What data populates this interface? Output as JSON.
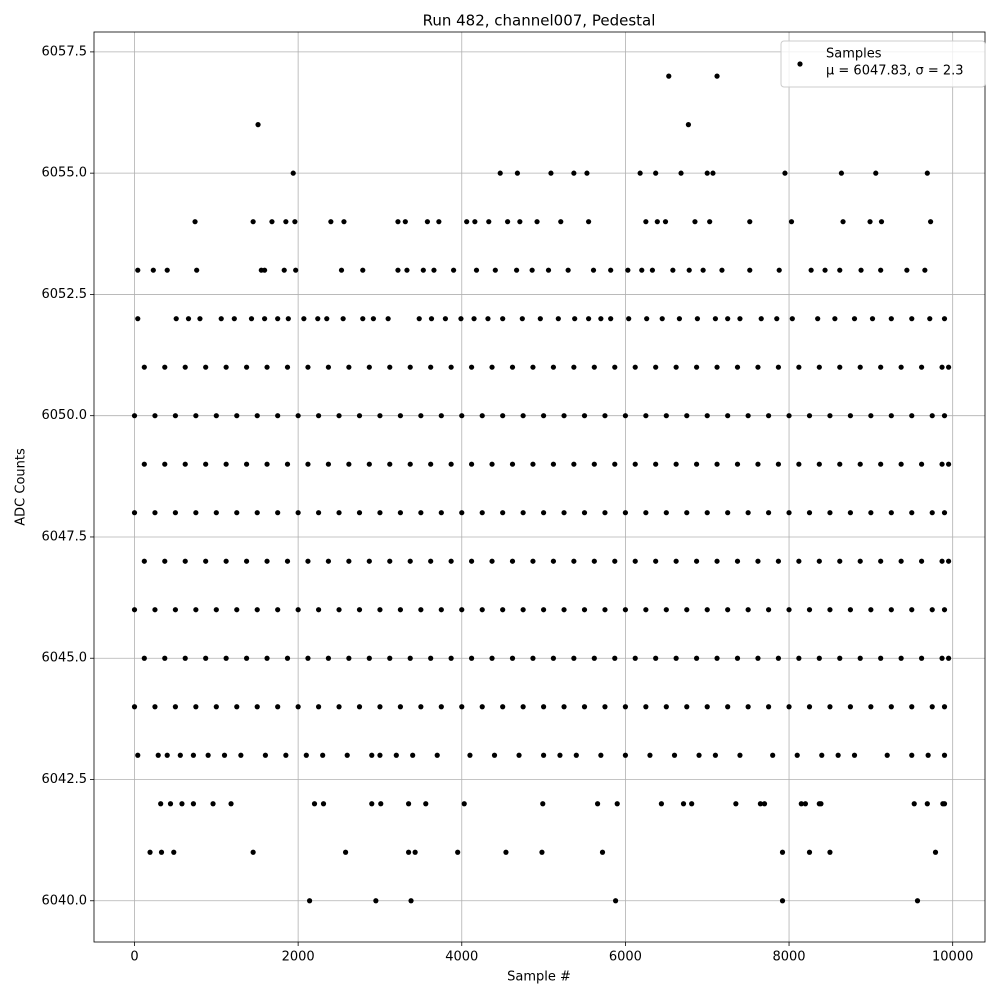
{
  "chart_data": {
    "type": "scatter",
    "title": "Run 482, channel007, Pedestal",
    "x_label": "Sample #",
    "y_label": "ADC Counts",
    "legend_position": "upper right",
    "legend_note": "μ = 6047.83, σ = 2.3",
    "grid": true,
    "xlim": [
      -495,
      10395
    ],
    "ylim": [
      6039.15,
      6057.91
    ],
    "xticks": [
      0,
      2000,
      4000,
      6000,
      8000,
      10000
    ],
    "yticks": [
      {
        "value": 6040,
        "label": "6040.0"
      },
      {
        "value": 6042.5,
        "label": "6042.5"
      },
      {
        "value": 6045,
        "label": "6045.0"
      },
      {
        "value": 6047.5,
        "label": "6047.5"
      },
      {
        "value": 6050,
        "label": "6050.0"
      },
      {
        "value": 6052.5,
        "label": "6052.5"
      },
      {
        "value": 6055,
        "label": "6055.0"
      },
      {
        "value": 6057.5,
        "label": "6057.5"
      }
    ],
    "series": [
      {
        "name": "Samples",
        "color": "#000000",
        "x": [
          6530,
          7120,
          1510,
          6770,
          1940,
          4470,
          4680,
          5090,
          5370,
          5530,
          6180,
          6370,
          6680,
          7000,
          7070,
          7950,
          8640,
          9060,
          9690,
          740,
          1450,
          1680,
          1850,
          1960,
          2400,
          2560,
          3220,
          3310,
          3580,
          3720,
          4060,
          4160,
          4330,
          4560,
          4710,
          4920,
          5210,
          5550,
          6250,
          6390,
          6490,
          6850,
          7030,
          7520,
          8030,
          8660,
          8990,
          9130,
          9730,
          40,
          230,
          400,
          760,
          1550,
          1590,
          1830,
          1970,
          2530,
          2790,
          3220,
          3330,
          3530,
          3660,
          3900,
          4180,
          4410,
          4670,
          4860,
          5060,
          5300,
          5610,
          5820,
          6030,
          6200,
          6330,
          6580,
          6780,
          6950,
          7180,
          7520,
          7880,
          8270,
          8440,
          8620,
          8880,
          9120,
          9440,
          9660,
          40,
          510,
          660,
          800,
          1060,
          1220,
          1430,
          1590,
          1750,
          1880,
          2070,
          2240,
          2350,
          2550,
          2790,
          3100,
          3480,
          3630,
          3800,
          3990,
          4150,
          4320,
          4500,
          4740,
          4960,
          5180,
          5380,
          5550,
          5820,
          6040,
          6260,
          6450,
          6660,
          6880,
          7100,
          7400,
          7660,
          7850,
          8040,
          8350,
          8560,
          8800,
          9020,
          9250,
          9500,
          9720,
          9900,
          2920,
          5700,
          7250,
          120,
          370,
          620,
          870,
          1120,
          1370,
          1620,
          1870,
          2120,
          2370,
          2620,
          2870,
          3120,
          3370,
          3620,
          3870,
          4120,
          4370,
          4620,
          4870,
          5120,
          5370,
          5620,
          5870,
          6120,
          6370,
          6620,
          6870,
          7120,
          7370,
          7620,
          7870,
          8120,
          8370,
          8620,
          8870,
          9120,
          9370,
          9620,
          9870,
          9950,
          0,
          250,
          500,
          750,
          1000,
          1250,
          1500,
          1750,
          2000,
          2250,
          2500,
          2750,
          3000,
          3250,
          3500,
          3750,
          4000,
          4250,
          4500,
          4750,
          5000,
          5250,
          5500,
          5750,
          6000,
          6250,
          6500,
          6750,
          7000,
          7250,
          7500,
          7750,
          8000,
          8250,
          8500,
          8750,
          9000,
          9250,
          9500,
          9750,
          9900,
          120,
          370,
          620,
          870,
          1120,
          1370,
          1620,
          1870,
          2120,
          2370,
          2620,
          2870,
          3120,
          3370,
          3620,
          3870,
          4120,
          4370,
          4620,
          4870,
          5120,
          5370,
          5620,
          5870,
          6120,
          6370,
          6620,
          6870,
          7120,
          7370,
          7620,
          7870,
          8120,
          8370,
          8620,
          8870,
          9120,
          9370,
          9620,
          9870,
          9950,
          0,
          250,
          500,
          750,
          1000,
          1250,
          1500,
          1750,
          2000,
          2250,
          2500,
          2750,
          3000,
          3250,
          3500,
          3750,
          4000,
          4250,
          4500,
          4750,
          5000,
          5250,
          5500,
          5750,
          6000,
          6250,
          6500,
          6750,
          7000,
          7250,
          7500,
          7750,
          8000,
          8250,
          8500,
          8750,
          9000,
          9250,
          9500,
          9750,
          9900,
          120,
          370,
          620,
          870,
          1120,
          1370,
          1620,
          1870,
          2120,
          2370,
          2620,
          2870,
          3120,
          3370,
          3620,
          3870,
          4120,
          4370,
          4620,
          4870,
          5120,
          5370,
          5620,
          5870,
          6120,
          6370,
          6620,
          6870,
          7120,
          7370,
          7620,
          7870,
          8120,
          8370,
          8620,
          8870,
          9120,
          9370,
          9620,
          9870,
          9950,
          0,
          250,
          500,
          750,
          1000,
          1250,
          1500,
          1750,
          2000,
          2250,
          2500,
          2750,
          3000,
          3250,
          3500,
          3750,
          4000,
          4250,
          4500,
          4750,
          5000,
          5250,
          5500,
          5750,
          6000,
          6250,
          6500,
          6750,
          7000,
          7250,
          7500,
          7750,
          8000,
          8250,
          8500,
          8750,
          9000,
          9250,
          9500,
          9750,
          9900,
          120,
          370,
          620,
          870,
          1120,
          1370,
          1620,
          1870,
          2120,
          2370,
          2620,
          2870,
          3120,
          3370,
          3620,
          3870,
          4120,
          4370,
          4620,
          4870,
          5120,
          5370,
          5620,
          5870,
          6120,
          6370,
          6620,
          6870,
          7120,
          7370,
          7620,
          7870,
          8120,
          8370,
          8620,
          8870,
          9120,
          9370,
          9620,
          9870,
          9950,
          0,
          250,
          500,
          750,
          1000,
          1250,
          1500,
          1750,
          2000,
          2250,
          2500,
          2750,
          3000,
          3250,
          3500,
          3750,
          4000,
          4250,
          4500,
          4750,
          5000,
          5250,
          5500,
          5750,
          6000,
          6250,
          6500,
          6750,
          7000,
          7250,
          7500,
          7750,
          8000,
          8250,
          8500,
          8750,
          9000,
          9250,
          9500,
          9750,
          9900,
          40,
          290,
          400,
          560,
          720,
          900,
          1100,
          1300,
          1600,
          1850,
          2100,
          2300,
          2600,
          2900,
          3200,
          3400,
          3700,
          4100,
          4400,
          4700,
          5000,
          5400,
          5700,
          6000,
          6300,
          6600,
          6900,
          7100,
          7400,
          7800,
          8100,
          8400,
          8800,
          9200,
          9500,
          9700,
          9900,
          3000,
          5200,
          8600,
          320,
          440,
          580,
          720,
          960,
          1180,
          2200,
          2310,
          2900,
          3010,
          3350,
          3560,
          4030,
          4990,
          5660,
          5900,
          6440,
          6710,
          6810,
          7350,
          7650,
          8150,
          8370,
          9530,
          9690,
          9880,
          7700,
          8200,
          8390,
          9900,
          190,
          330,
          480,
          1450,
          2580,
          3350,
          3430,
          3950,
          4540,
          4980,
          5720,
          7920,
          8250,
          8500,
          9790,
          2140,
          2950,
          3380,
          5880,
          7920,
          9570
        ],
        "values": [
          6057,
          6057,
          6056,
          6056,
          6055,
          6055,
          6055,
          6055,
          6055,
          6055,
          6055,
          6055,
          6055,
          6055,
          6055,
          6055,
          6055,
          6055,
          6055,
          6054,
          6054,
          6054,
          6054,
          6054,
          6054,
          6054,
          6054,
          6054,
          6054,
          6054,
          6054,
          6054,
          6054,
          6054,
          6054,
          6054,
          6054,
          6054,
          6054,
          6054,
          6054,
          6054,
          6054,
          6054,
          6054,
          6054,
          6054,
          6054,
          6054,
          6053,
          6053,
          6053,
          6053,
          6053,
          6053,
          6053,
          6053,
          6053,
          6053,
          6053,
          6053,
          6053,
          6053,
          6053,
          6053,
          6053,
          6053,
          6053,
          6053,
          6053,
          6053,
          6053,
          6053,
          6053,
          6053,
          6053,
          6053,
          6053,
          6053,
          6053,
          6053,
          6053,
          6053,
          6053,
          6053,
          6053,
          6053,
          6053,
          6052,
          6052,
          6052,
          6052,
          6052,
          6052,
          6052,
          6052,
          6052,
          6052,
          6052,
          6052,
          6052,
          6052,
          6052,
          6052,
          6052,
          6052,
          6052,
          6052,
          6052,
          6052,
          6052,
          6052,
          6052,
          6052,
          6052,
          6052,
          6052,
          6052,
          6052,
          6052,
          6052,
          6052,
          6052,
          6052,
          6052,
          6052,
          6052,
          6052,
          6052,
          6052,
          6052,
          6052,
          6052,
          6052,
          6052,
          6052,
          6052,
          6052,
          6051,
          6051,
          6051,
          6051,
          6051,
          6051,
          6051,
          6051,
          6051,
          6051,
          6051,
          6051,
          6051,
          6051,
          6051,
          6051,
          6051,
          6051,
          6051,
          6051,
          6051,
          6051,
          6051,
          6051,
          6051,
          6051,
          6051,
          6051,
          6051,
          6051,
          6051,
          6051,
          6051,
          6051,
          6051,
          6051,
          6051,
          6051,
          6051,
          6051,
          6051,
          6050,
          6050,
          6050,
          6050,
          6050,
          6050,
          6050,
          6050,
          6050,
          6050,
          6050,
          6050,
          6050,
          6050,
          6050,
          6050,
          6050,
          6050,
          6050,
          6050,
          6050,
          6050,
          6050,
          6050,
          6050,
          6050,
          6050,
          6050,
          6050,
          6050,
          6050,
          6050,
          6050,
          6050,
          6050,
          6050,
          6050,
          6050,
          6050,
          6050,
          6050,
          6049,
          6049,
          6049,
          6049,
          6049,
          6049,
          6049,
          6049,
          6049,
          6049,
          6049,
          6049,
          6049,
          6049,
          6049,
          6049,
          6049,
          6049,
          6049,
          6049,
          6049,
          6049,
          6049,
          6049,
          6049,
          6049,
          6049,
          6049,
          6049,
          6049,
          6049,
          6049,
          6049,
          6049,
          6049,
          6049,
          6049,
          6049,
          6049,
          6049,
          6049,
          6048,
          6048,
          6048,
          6048,
          6048,
          6048,
          6048,
          6048,
          6048,
          6048,
          6048,
          6048,
          6048,
          6048,
          6048,
          6048,
          6048,
          6048,
          6048,
          6048,
          6048,
          6048,
          6048,
          6048,
          6048,
          6048,
          6048,
          6048,
          6048,
          6048,
          6048,
          6048,
          6048,
          6048,
          6048,
          6048,
          6048,
          6048,
          6048,
          6048,
          6048,
          6047,
          6047,
          6047,
          6047,
          6047,
          6047,
          6047,
          6047,
          6047,
          6047,
          6047,
          6047,
          6047,
          6047,
          6047,
          6047,
          6047,
          6047,
          6047,
          6047,
          6047,
          6047,
          6047,
          6047,
          6047,
          6047,
          6047,
          6047,
          6047,
          6047,
          6047,
          6047,
          6047,
          6047,
          6047,
          6047,
          6047,
          6047,
          6047,
          6047,
          6047,
          6046,
          6046,
          6046,
          6046,
          6046,
          6046,
          6046,
          6046,
          6046,
          6046,
          6046,
          6046,
          6046,
          6046,
          6046,
          6046,
          6046,
          6046,
          6046,
          6046,
          6046,
          6046,
          6046,
          6046,
          6046,
          6046,
          6046,
          6046,
          6046,
          6046,
          6046,
          6046,
          6046,
          6046,
          6046,
          6046,
          6046,
          6046,
          6046,
          6046,
          6046,
          6045,
          6045,
          6045,
          6045,
          6045,
          6045,
          6045,
          6045,
          6045,
          6045,
          6045,
          6045,
          6045,
          6045,
          6045,
          6045,
          6045,
          6045,
          6045,
          6045,
          6045,
          6045,
          6045,
          6045,
          6045,
          6045,
          6045,
          6045,
          6045,
          6045,
          6045,
          6045,
          6045,
          6045,
          6045,
          6045,
          6045,
          6045,
          6045,
          6045,
          6045,
          6044,
          6044,
          6044,
          6044,
          6044,
          6044,
          6044,
          6044,
          6044,
          6044,
          6044,
          6044,
          6044,
          6044,
          6044,
          6044,
          6044,
          6044,
          6044,
          6044,
          6044,
          6044,
          6044,
          6044,
          6044,
          6044,
          6044,
          6044,
          6044,
          6044,
          6044,
          6044,
          6044,
          6044,
          6044,
          6044,
          6044,
          6044,
          6044,
          6044,
          6044,
          6043,
          6043,
          6043,
          6043,
          6043,
          6043,
          6043,
          6043,
          6043,
          6043,
          6043,
          6043,
          6043,
          6043,
          6043,
          6043,
          6043,
          6043,
          6043,
          6043,
          6043,
          6043,
          6043,
          6043,
          6043,
          6043,
          6043,
          6043,
          6043,
          6043,
          6043,
          6043,
          6043,
          6043,
          6043,
          6043,
          6043,
          6043,
          6043,
          6043,
          6042,
          6042,
          6042,
          6042,
          6042,
          6042,
          6042,
          6042,
          6042,
          6042,
          6042,
          6042,
          6042,
          6042,
          6042,
          6042,
          6042,
          6042,
          6042,
          6042,
          6042,
          6042,
          6042,
          6042,
          6042,
          6042,
          6042,
          6042,
          6042,
          6042,
          6041,
          6041,
          6041,
          6041,
          6041,
          6041,
          6041,
          6041,
          6041,
          6041,
          6041,
          6041,
          6041,
          6041,
          6041,
          6040,
          6040,
          6040,
          6040,
          6040,
          6040
        ]
      }
    ]
  }
}
